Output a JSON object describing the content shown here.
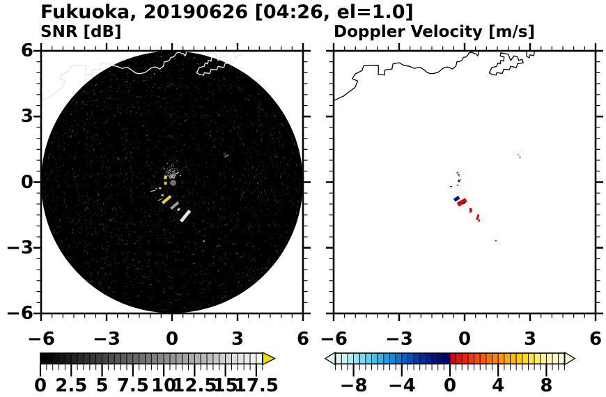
{
  "title": "Fukuoka, 20190626 [04:26, el=1.0]",
  "panels": {
    "snr": {
      "label": "SNR [dB]",
      "x_tick_labels": [
        "−6",
        "−3",
        "0",
        "3",
        "6"
      ],
      "x_tick_values": [
        -6,
        -3,
        0,
        3,
        6
      ],
      "y_tick_labels": [
        "6",
        "3",
        "0",
        "−3",
        "−6"
      ],
      "y_tick_values": [
        6,
        3,
        0,
        -3,
        -6
      ],
      "colorbar": {
        "min": 0,
        "max": 18,
        "cell_step": 0.5,
        "tick_labels": [
          "0",
          "2.5",
          "5",
          "7.5",
          "10",
          "12.5",
          "15",
          "17.5"
        ],
        "tick_values": [
          0,
          2.5,
          5,
          7.5,
          10,
          12.5,
          15,
          17.5
        ],
        "overflow_arrow_color": "#f2dd00",
        "cell_colors": [
          "#000000",
          "#070707",
          "#0e0e0e",
          "#151515",
          "#1c1c1c",
          "#232323",
          "#2b2b2b",
          "#323232",
          "#393939",
          "#404040",
          "#474747",
          "#4e4e4e",
          "#555555",
          "#5c5c5c",
          "#636363",
          "#6a6a6a",
          "#717171",
          "#787878",
          "#808080",
          "#878787",
          "#8e8e8e",
          "#959595",
          "#9c9c9c",
          "#a3a3a3",
          "#aaaaaa",
          "#b1b1b1",
          "#b8b8b8",
          "#bfbfbf",
          "#c6c6c6",
          "#cecece",
          "#d5d5d5",
          "#dcdcdc",
          "#e3e3e3",
          "#eaeaea",
          "#f1f1f1",
          "#f8f8f8"
        ]
      }
    },
    "doppler": {
      "label": "Doppler Velocity [m/s]",
      "x_tick_labels": [
        "−6",
        "−3",
        "0",
        "3",
        "6"
      ],
      "x_tick_values": [
        -6,
        -3,
        0,
        3,
        6
      ],
      "colorbar": {
        "min": -9.5,
        "max": 9.5,
        "cell_step": 0.5,
        "tick_labels": [
          "−8",
          "−4",
          "0",
          "4",
          "8"
        ],
        "tick_values": [
          -8,
          -4,
          0,
          4,
          8
        ],
        "under_arrow_color": "#dcf5ec",
        "over_arrow_color": "#f7f7dc",
        "cell_colors": [
          "#dcf5ec",
          "#c6f2f0",
          "#adedf2",
          "#93e6f3",
          "#78dcf3",
          "#5dd0f1",
          "#44c2ee",
          "#2fb2e9",
          "#1da0e2",
          "#0f8cda",
          "#0678d0",
          "#0163c6",
          "#004fba",
          "#003dae",
          "#002da0",
          "#001f92",
          "#001484",
          "#000c76",
          "#000668",
          "#e10000",
          "#e81200",
          "#ef2500",
          "#f43800",
          "#f84b00",
          "#fb5e00",
          "#fd7100",
          "#fe8400",
          "#ff9700",
          "#ffa900",
          "#ffbb00",
          "#ffcc00",
          "#ffdb14",
          "#ffe43c",
          "#ffeb64",
          "#fff08c",
          "#fff4b0",
          "#fff7cc",
          "#f7f7dc"
        ]
      }
    }
  },
  "colors": {
    "background": "#ffffff",
    "radar_disk": "#000000",
    "coastline_left_panel": "#e8e8e8",
    "coastline_right_panel": "#000000",
    "echo_positive_velocity": "#dc0000",
    "echo_negative_velocity": "#001074",
    "snr_strong_echo_yellow": "#f0e000",
    "center_blind_disk": "#6f6f6f"
  },
  "chart_data": {
    "type": "heatmap",
    "subtype": "radar-ppi-pair",
    "site": "Fukuoka",
    "date": "20190626",
    "time": "04:26",
    "elevation_deg": 1.0,
    "axes": {
      "x_range_km": [
        -6,
        6
      ],
      "y_range_km": [
        -6,
        6
      ],
      "major_tick_km": 3,
      "minor_tick_km": 0.5
    },
    "panels": [
      {
        "name": "SNR [dB]",
        "scale": {
          "min_db": 0,
          "max_db": 18,
          "step_db": 0.5,
          "ticks_db": [
            0,
            2.5,
            5,
            7.5,
            10,
            12.5,
            15,
            17.5
          ],
          "ramp": "black-to-white grayscale",
          "above_max": "yellow arrow"
        },
        "radar_coverage_radius_km": 6,
        "center_blind_disk": {
          "x": 0.05,
          "y": -0.03,
          "r_km": 0.14,
          "color": "#6f6f6f"
        },
        "echoes": [
          {
            "x": -0.3,
            "y": 0.22,
            "w": 0.13,
            "h": 0.16,
            "rot": 20,
            "c": "#eed800"
          },
          {
            "x": -0.3,
            "y": -0.05,
            "w": 0.12,
            "h": 0.14,
            "rot": 0,
            "c": "#f0e000"
          },
          {
            "x": -0.55,
            "y": -0.28,
            "w": 0.1,
            "h": 0.09,
            "rot": 0,
            "c": "#e0cc00"
          },
          {
            "x": -0.17,
            "y": 0.42,
            "w": 0.05,
            "h": 0.04,
            "rot": 0,
            "c": "#d8c800"
          },
          {
            "x": -0.09,
            "y": 0.5,
            "w": 0.04,
            "h": 0.04,
            "rot": 0,
            "c": "#c8b800"
          },
          {
            "x": 0.25,
            "y": 0.42,
            "w": 0.15,
            "h": 0.04,
            "rot": -40,
            "c": "#e8e8e8"
          },
          {
            "x": 0.38,
            "y": 0.3,
            "w": 0.1,
            "h": 0.035,
            "rot": -40,
            "c": "#cccccc"
          },
          {
            "x": -0.88,
            "y": -0.4,
            "w": 0.22,
            "h": 0.035,
            "rot": -12,
            "c": "#d8d8d8"
          },
          {
            "x": -0.72,
            "y": -0.3,
            "w": 0.07,
            "h": 0.05,
            "rot": 0,
            "c": "#e0d000"
          },
          {
            "x": -0.44,
            "y": -0.6,
            "w": 0.1,
            "h": 0.08,
            "rot": 0,
            "c": "#f0e000"
          },
          {
            "x": -0.25,
            "y": -0.8,
            "w": 0.5,
            "h": 0.13,
            "rot": -40,
            "c": "#ecd800"
          },
          {
            "x": -0.55,
            "y": -0.8,
            "w": 0.22,
            "h": 0.03,
            "rot": -25,
            "c": "#cfcfcf"
          },
          {
            "x": 0.12,
            "y": -1.07,
            "w": 0.44,
            "h": 0.13,
            "rot": -40,
            "c": "#9a9a9a"
          },
          {
            "x": 0.3,
            "y": -1.25,
            "w": 0.14,
            "h": 0.1,
            "rot": -40,
            "c": "#b8b8b8"
          },
          {
            "x": 0.61,
            "y": -1.55,
            "w": 0.64,
            "h": 0.15,
            "rot": -51,
            "c": "#e4e4e4"
          },
          {
            "x": 2.5,
            "y": 1.2,
            "w": 0.22,
            "h": 0.08,
            "rot": -25,
            "c": "#606060"
          },
          {
            "x": 2.4,
            "y": 1.28,
            "w": 0.1,
            "h": 0.05,
            "rot": 0,
            "c": "#505050"
          },
          {
            "x": 1.45,
            "y": -2.7,
            "w": 0.1,
            "h": 0.06,
            "rot": -30,
            "c": "#909090"
          },
          {
            "x": -0.8,
            "y": 4.95,
            "w": 0.06,
            "h": 0.05,
            "rot": 0,
            "c": "#888888"
          }
        ]
      },
      {
        "name": "Doppler Velocity [m/s]",
        "scale": {
          "min_ms": -9.5,
          "max_ms": 9.5,
          "step_ms": 0.5,
          "ticks_ms": [
            -8,
            -4,
            0,
            4,
            8
          ]
        },
        "echoes": [
          {
            "x": -0.33,
            "y": 0.44,
            "w": 0.1,
            "h": 0.05,
            "rot": -40,
            "c": "#dc0000"
          },
          {
            "x": -0.28,
            "y": 0.34,
            "w": 0.09,
            "h": 0.05,
            "rot": -40,
            "c": "#dc0000"
          },
          {
            "x": -0.25,
            "y": 0.28,
            "w": 0.04,
            "h": 0.04,
            "rot": 0,
            "c": "#001074"
          },
          {
            "x": -0.26,
            "y": 0.06,
            "w": 0.09,
            "h": 0.1,
            "rot": 20,
            "c": "#001074"
          },
          {
            "x": -0.18,
            "y": 0.13,
            "w": 0.05,
            "h": 0.04,
            "rot": 0,
            "c": "#dc0000"
          },
          {
            "x": -0.62,
            "y": -0.2,
            "w": 0.09,
            "h": 0.05,
            "rot": 0,
            "c": "#001074"
          },
          {
            "x": -0.32,
            "y": -0.14,
            "w": 0.08,
            "h": 0.04,
            "rot": -20,
            "c": "#001074"
          },
          {
            "x": -0.36,
            "y": -0.76,
            "w": 0.26,
            "h": 0.16,
            "rot": -33,
            "c": "#001074"
          },
          {
            "x": -0.12,
            "y": -0.92,
            "w": 0.44,
            "h": 0.2,
            "rot": -30,
            "c": "#dc0000"
          },
          {
            "x": -0.02,
            "y": -0.96,
            "w": 0.1,
            "h": 0.07,
            "rot": -30,
            "c": "#001074"
          },
          {
            "x": 0.28,
            "y": -1.3,
            "w": 0.1,
            "h": 0.2,
            "rot": 15,
            "c": "#dc0000"
          },
          {
            "x": 0.25,
            "y": -1.22,
            "w": 0.05,
            "h": 0.05,
            "rot": 0,
            "c": "#001074"
          },
          {
            "x": 0.6,
            "y": -1.6,
            "w": 0.09,
            "h": 0.26,
            "rot": 18,
            "c": "#dc0000"
          },
          {
            "x": 0.66,
            "y": -1.76,
            "w": 0.07,
            "h": 0.12,
            "rot": 18,
            "c": "#dc0000"
          },
          {
            "x": 1.43,
            "y": -2.68,
            "w": 0.07,
            "h": 0.05,
            "rot": 0,
            "c": "#dc0000"
          },
          {
            "x": 2.47,
            "y": 1.24,
            "w": 0.07,
            "h": 0.04,
            "rot": 0,
            "c": "#dc0000"
          },
          {
            "x": 2.54,
            "y": 1.14,
            "w": 0.07,
            "h": 0.04,
            "rot": 0,
            "c": "#001074"
          }
        ]
      }
    ],
    "coastline_km": [
      [
        -6.05,
        3.7
      ],
      [
        -5.55,
        3.93
      ],
      [
        -5.02,
        4.33
      ],
      [
        -4.9,
        4.62
      ],
      [
        -5.15,
        4.73
      ],
      [
        -5.0,
        4.95
      ],
      [
        -4.7,
        5.1
      ],
      [
        -4.62,
        5.32
      ],
      [
        -3.95,
        5.34
      ],
      [
        -3.95,
        4.92
      ],
      [
        -3.66,
        4.9
      ],
      [
        -3.66,
        5.12
      ],
      [
        -3.33,
        5.17
      ],
      [
        -3.28,
        5.4
      ],
      [
        -3.0,
        5.46
      ],
      [
        -2.8,
        5.34
      ],
      [
        -2.52,
        5.29
      ],
      [
        -2.3,
        5.2
      ],
      [
        -2.05,
        5.25
      ],
      [
        -1.84,
        5.12
      ],
      [
        -1.7,
        5.0
      ],
      [
        -1.55,
        4.96
      ],
      [
        -1.4,
        4.97
      ],
      [
        -1.2,
        5.03
      ],
      [
        -1.0,
        5.19
      ],
      [
        -0.9,
        5.24
      ],
      [
        -0.77,
        5.26
      ],
      [
        -0.62,
        5.2
      ],
      [
        -0.56,
        5.17
      ],
      [
        -0.4,
        5.3
      ],
      [
        -0.35,
        5.5
      ],
      [
        -0.22,
        5.52
      ],
      [
        -0.13,
        5.56
      ],
      [
        -0.05,
        5.7
      ],
      [
        0.05,
        5.72
      ],
      [
        0.13,
        5.78
      ],
      [
        0.2,
        5.9
      ],
      [
        0.33,
        5.94
      ],
      [
        0.44,
        5.88
      ],
      [
        0.52,
        5.87
      ],
      [
        0.6,
        5.77
      ],
      [
        0.64,
        5.86
      ],
      [
        0.66,
        6.1
      ]
    ],
    "harbor_polygon_km": [
      [
        1.13,
        5.0
      ],
      [
        1.25,
        5.24
      ],
      [
        1.47,
        5.29
      ],
      [
        1.52,
        5.45
      ],
      [
        1.63,
        5.4
      ],
      [
        1.66,
        5.56
      ],
      [
        1.79,
        5.53
      ],
      [
        1.81,
        5.72
      ],
      [
        1.63,
        5.77
      ],
      [
        1.66,
        5.91
      ],
      [
        2.0,
        5.84
      ],
      [
        2.11,
        5.56
      ],
      [
        2.27,
        5.77
      ],
      [
        2.43,
        5.72
      ],
      [
        2.48,
        5.56
      ],
      [
        2.64,
        5.61
      ],
      [
        2.69,
        5.45
      ],
      [
        2.43,
        5.42
      ],
      [
        2.37,
        5.24
      ],
      [
        2.11,
        5.29
      ],
      [
        2.05,
        5.13
      ],
      [
        1.79,
        5.16
      ],
      [
        1.73,
        4.97
      ],
      [
        1.47,
        5.0
      ],
      [
        1.45,
        4.89
      ],
      [
        1.25,
        4.92
      ]
    ],
    "pier_km": [
      [
        2.83,
        6.1
      ],
      [
        2.85,
        5.75
      ],
      [
        2.96,
        5.68
      ],
      [
        3.0,
        5.82
      ],
      [
        3.17,
        5.78
      ],
      [
        3.22,
        6.1
      ]
    ]
  }
}
